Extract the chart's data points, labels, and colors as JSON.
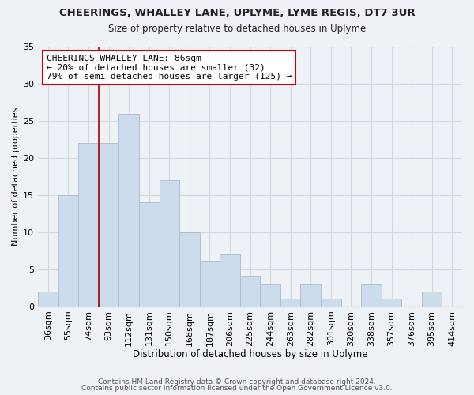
{
  "title": "CHEERINGS, WHALLEY LANE, UPLYME, LYME REGIS, DT7 3UR",
  "subtitle": "Size of property relative to detached houses in Uplyme",
  "xlabel": "Distribution of detached houses by size in Uplyme",
  "ylabel": "Number of detached properties",
  "bar_color": "#ccdcec",
  "bar_edge_color": "#aabbcc",
  "categories": [
    "36sqm",
    "55sqm",
    "74sqm",
    "93sqm",
    "112sqm",
    "131sqm",
    "150sqm",
    "168sqm",
    "187sqm",
    "206sqm",
    "225sqm",
    "244sqm",
    "263sqm",
    "282sqm",
    "301sqm",
    "320sqm",
    "338sqm",
    "357sqm",
    "376sqm",
    "395sqm",
    "414sqm"
  ],
  "values": [
    2,
    15,
    22,
    22,
    26,
    14,
    17,
    10,
    6,
    7,
    4,
    3,
    1,
    3,
    1,
    0,
    3,
    1,
    0,
    2,
    0
  ],
  "ylim": [
    0,
    35
  ],
  "yticks": [
    0,
    5,
    10,
    15,
    20,
    25,
    30,
    35
  ],
  "vline_x": 2.5,
  "annotation_text": "CHEERINGS WHALLEY LANE: 86sqm\n← 20% of detached houses are smaller (32)\n79% of semi-detached houses are larger (125) →",
  "annotation_box_color": "#ffffff",
  "annotation_box_edgecolor": "#cc0000",
  "footer_line1": "Contains HM Land Registry data © Crown copyright and database right 2024.",
  "footer_line2": "Contains public sector information licensed under the Open Government Licence v3.0.",
  "vline_color": "#aa0000",
  "grid_color": "#d0d8e0",
  "background_color": "#eef2f6"
}
